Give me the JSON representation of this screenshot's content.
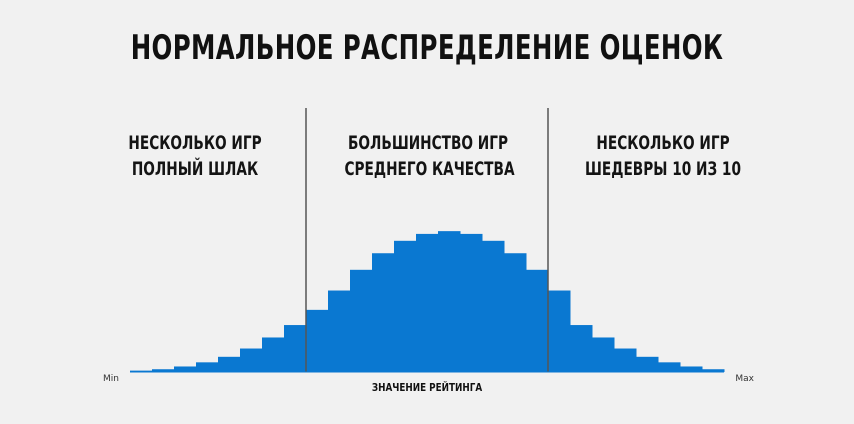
{
  "title": "НОРМАЛЬНОЕ РАСПРЕДЕЛЕНИЕ ОЦЕНОК",
  "regions": {
    "left": {
      "line1": "НЕСКОЛЬКО ИГР",
      "line2": "ПОЛНЫЙ ШЛАК"
    },
    "middle": {
      "line1": "БОЛЬШИНСТВО ИГР",
      "line2": "СРЕДНЕГО КАЧЕСТВА"
    },
    "right": {
      "line1": "НЕСКОЛЬКО ИГР",
      "line2": "ШЕДЕВРЫ 10 ИЗ 10"
    }
  },
  "chart_data": {
    "type": "bar",
    "title": "НОРМАЛЬНОЕ РАСПРЕДЕЛЕНИЕ ОЦЕНОК",
    "xlabel": "ЗНАЧЕНИЕ РЕЙТИНГА",
    "ylabel": "",
    "x_min_label": "Min",
    "x_max_label": "Max",
    "bar_count": 27,
    "values": [
      1,
      2,
      4,
      7,
      11,
      17,
      25,
      34,
      45,
      59,
      74,
      86,
      95,
      100,
      102,
      100,
      95,
      86,
      74,
      59,
      34,
      25,
      17,
      11,
      7,
      4,
      2
    ],
    "ylim": [
      0,
      105
    ],
    "dividers_after_bar": [
      8,
      19
    ],
    "bar_color": "#0a78d1",
    "divider_color": "#555555",
    "grid": false,
    "legend": "none"
  }
}
